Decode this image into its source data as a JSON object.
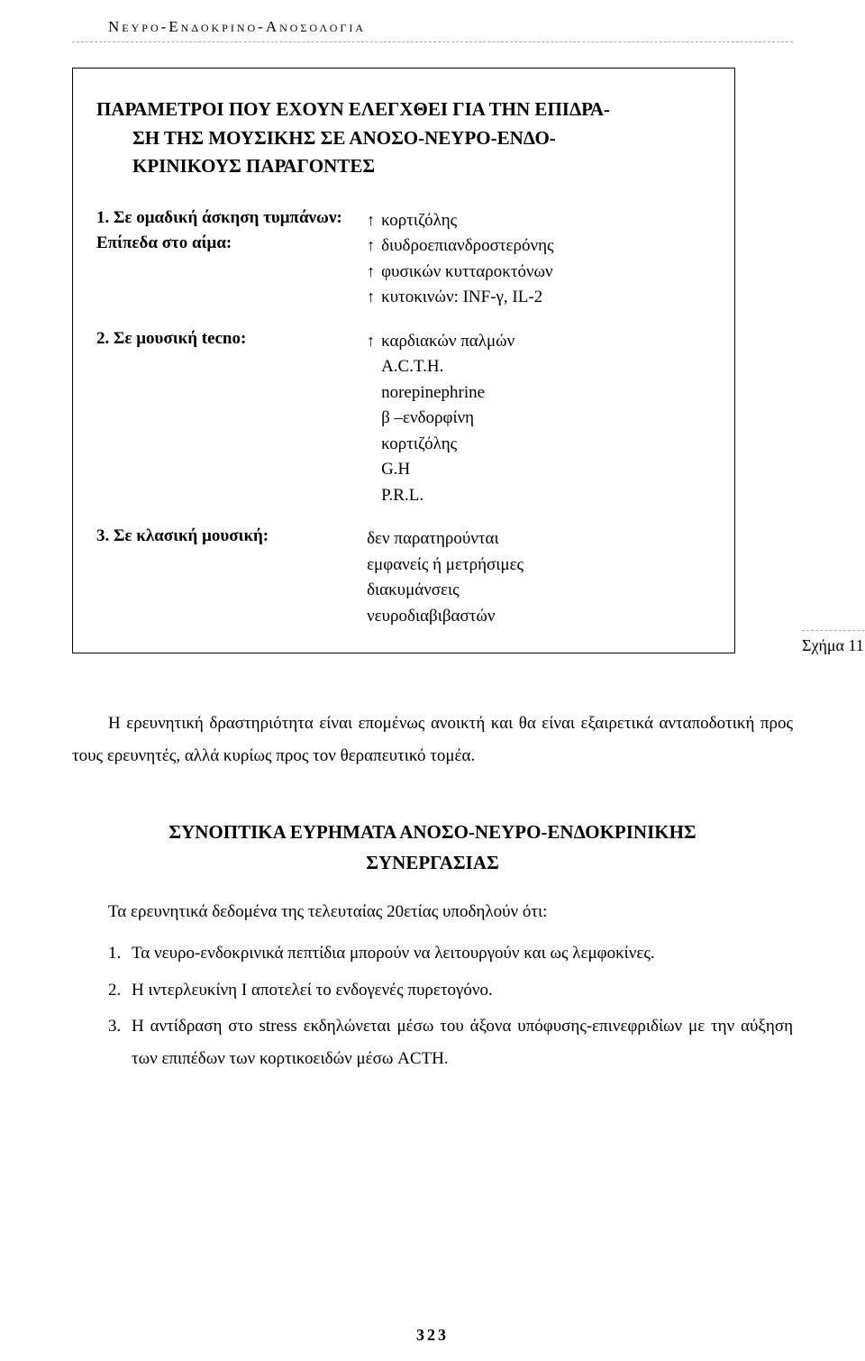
{
  "header": {
    "title": "Νευρο-Ενδοκρινο-Ανοσολογια"
  },
  "figure": {
    "title_line1": "ΠΑΡΑΜΕΤΡΟΙ ΠΟΥ ΕΧΟΥΝ ΕΛΕΓΧΘΕΙ ΓΙΑ ΤΗΝ ΕΠΙΔΡΑ-",
    "title_line2": "ΣΗ ΤΗΣ ΜΟΥΣΙΚΗΣ ΣΕ ΑΝΟΣΟ-ΝΕΥΡΟ-ΕΝΔΟ-",
    "title_line3": "ΚΡΙΝΙΚΟΥΣ ΠΑΡΑΓΟΝΤΕΣ",
    "params": [
      {
        "label": "1. Σε ομαδική άσκηση τυμπάνων:",
        "sublabel": "Επίπεδα στο αίμα:",
        "values": [
          {
            "arrow": "↑",
            "text": "κορτιζόλης"
          },
          {
            "arrow": "↑",
            "text": "διυδροεπιανδροστερόνης"
          },
          {
            "arrow": "↑",
            "text": "φυσικών κυτταροκτόνων"
          },
          {
            "arrow": "↑",
            "text": "κυτοκινών: INF-γ, IL-2"
          }
        ]
      },
      {
        "label": "2. Σε μουσική tecno:",
        "sublabel": "",
        "values": [
          {
            "arrow": "↑",
            "text": "καρδιακών παλμών"
          },
          {
            "arrow": "",
            "text": "A.C.T.H."
          },
          {
            "arrow": "",
            "text": "norepinephrine"
          },
          {
            "arrow": "",
            "text": "β –ενδορφίνη"
          },
          {
            "arrow": "",
            "text": "κορτιζόλης"
          },
          {
            "arrow": "",
            "text": "G.H"
          },
          {
            "arrow": "",
            "text": "P.R.L."
          }
        ]
      },
      {
        "label": "3. Σε κλασική μουσική:",
        "sublabel": "",
        "values": [
          {
            "arrow": "",
            "text": "δεν παρατηρούνται"
          },
          {
            "arrow": "",
            "text": "εμφανείς ή μετρήσιμες"
          },
          {
            "arrow": "",
            "text": "διακυμάνσεις"
          },
          {
            "arrow": "",
            "text": "νευροδιαβιβαστών"
          }
        ]
      }
    ],
    "caption": "Σχήμα 11"
  },
  "paragraph": {
    "text": "Η ερευνητική δραστηριότητα είναι επομένως ανοικτή και θα είναι εξαιρετικά ανταποδοτική προς τους ερευνητές, αλλά κυρίως προς τον θεραπευτικό τομέα."
  },
  "section": {
    "heading_line1": "ΣΥΝΟΠΤΙΚΑ ΕΥΡΗΜΑΤΑ ΑΝΟΣΟ-ΝΕΥΡΟ-ΕΝΔΟΚΡΙΝΙΚΗΣ",
    "heading_line2": "ΣΥΝΕΡΓΑΣΙΑΣ",
    "intro": "Τα ερευνητικά δεδομένα της τελευταίας 20ετίας υποδηλούν ότι:",
    "items": [
      {
        "num": "1.",
        "text": "Τα νευρο-ενδοκρινικά πεπτίδια μπορούν να λειτουργούν και ως λεμφοκίνες."
      },
      {
        "num": "2.",
        "text": "Η ιντερλευκίνη I αποτελεί το ενδογενές πυρετογόνο."
      },
      {
        "num": "3.",
        "text": "Η αντίδραση στο stress εκδηλώνεται μέσω του άξονα υπόφυσης-επινεφριδίων με την αύξηση των επιπέδων των κορτικοειδών μέσω ACTH."
      }
    ]
  },
  "page_number": "323"
}
